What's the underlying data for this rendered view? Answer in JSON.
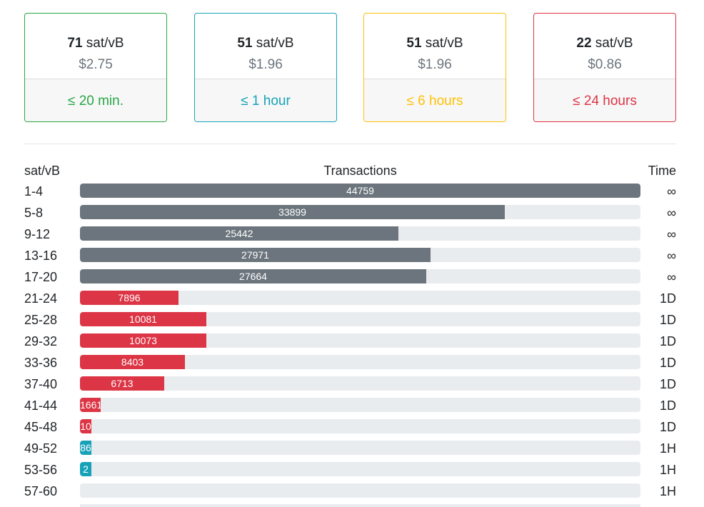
{
  "colors": {
    "gray": "#6c757d",
    "red": "#dc3545",
    "teal": "#17a2b8",
    "green": "#28a745",
    "blue": "#17a2b8",
    "yellow": "#ffc107",
    "track": "#e9ecef"
  },
  "cards": [
    {
      "rate_value": "71",
      "rate_unit": "sat/vB",
      "usd": "$2.75",
      "time": "≤ 20 min.",
      "color": "#28a745",
      "text_color": "#28a745"
    },
    {
      "rate_value": "51",
      "rate_unit": "sat/vB",
      "usd": "$1.96",
      "time": "≤ 1 hour",
      "color": "#17a2b8",
      "text_color": "#17a2b8"
    },
    {
      "rate_value": "51",
      "rate_unit": "sat/vB",
      "usd": "$1.96",
      "time": "≤ 6 hours",
      "color": "#ffc107",
      "text_color": "#ffc107"
    },
    {
      "rate_value": "22",
      "rate_unit": "sat/vB",
      "usd": "$0.86",
      "time": "≤ 24 hours",
      "color": "#dc3545",
      "text_color": "#dc3545"
    }
  ],
  "table": {
    "header_rate": "sat/vB",
    "header_tx": "Transactions",
    "header_time": "Time",
    "max": 44759,
    "rows": [
      {
        "label": "1-4",
        "count": 44759,
        "display": "44759",
        "color": "#6c757d",
        "time": "∞"
      },
      {
        "label": "5-8",
        "count": 33899,
        "display": "33899",
        "color": "#6c757d",
        "time": "∞"
      },
      {
        "label": "9-12",
        "count": 25442,
        "display": "25442",
        "color": "#6c757d",
        "time": "∞"
      },
      {
        "label": "13-16",
        "count": 27971,
        "display": "27971",
        "color": "#6c757d",
        "time": "∞"
      },
      {
        "label": "17-20",
        "count": 27664,
        "display": "27664",
        "color": "#6c757d",
        "time": "∞"
      },
      {
        "label": "21-24",
        "count": 7896,
        "display": "7896",
        "color": "#dc3545",
        "time": "1D"
      },
      {
        "label": "25-28",
        "count": 10081,
        "display": "10081",
        "color": "#dc3545",
        "time": "1D"
      },
      {
        "label": "29-32",
        "count": 10073,
        "display": "10073",
        "color": "#dc3545",
        "time": "1D"
      },
      {
        "label": "33-36",
        "count": 8403,
        "display": "8403",
        "color": "#dc3545",
        "time": "1D"
      },
      {
        "label": "37-40",
        "count": 6713,
        "display": "6713",
        "color": "#dc3545",
        "time": "1D"
      },
      {
        "label": "41-44",
        "count": 1661,
        "display": "1661",
        "color": "#dc3545",
        "time": "1D"
      },
      {
        "label": "45-48",
        "count": 10,
        "display": "10",
        "color": "#dc3545",
        "time": "1D"
      },
      {
        "label": "49-52",
        "count": 86,
        "display": "86",
        "color": "#17a2b8",
        "time": "1H"
      },
      {
        "label": "53-56",
        "count": 2,
        "display": "2",
        "color": "#17a2b8",
        "time": "1H"
      },
      {
        "label": "57-60",
        "count": 0,
        "display": "",
        "color": "#17a2b8",
        "time": "1H"
      }
    ]
  }
}
